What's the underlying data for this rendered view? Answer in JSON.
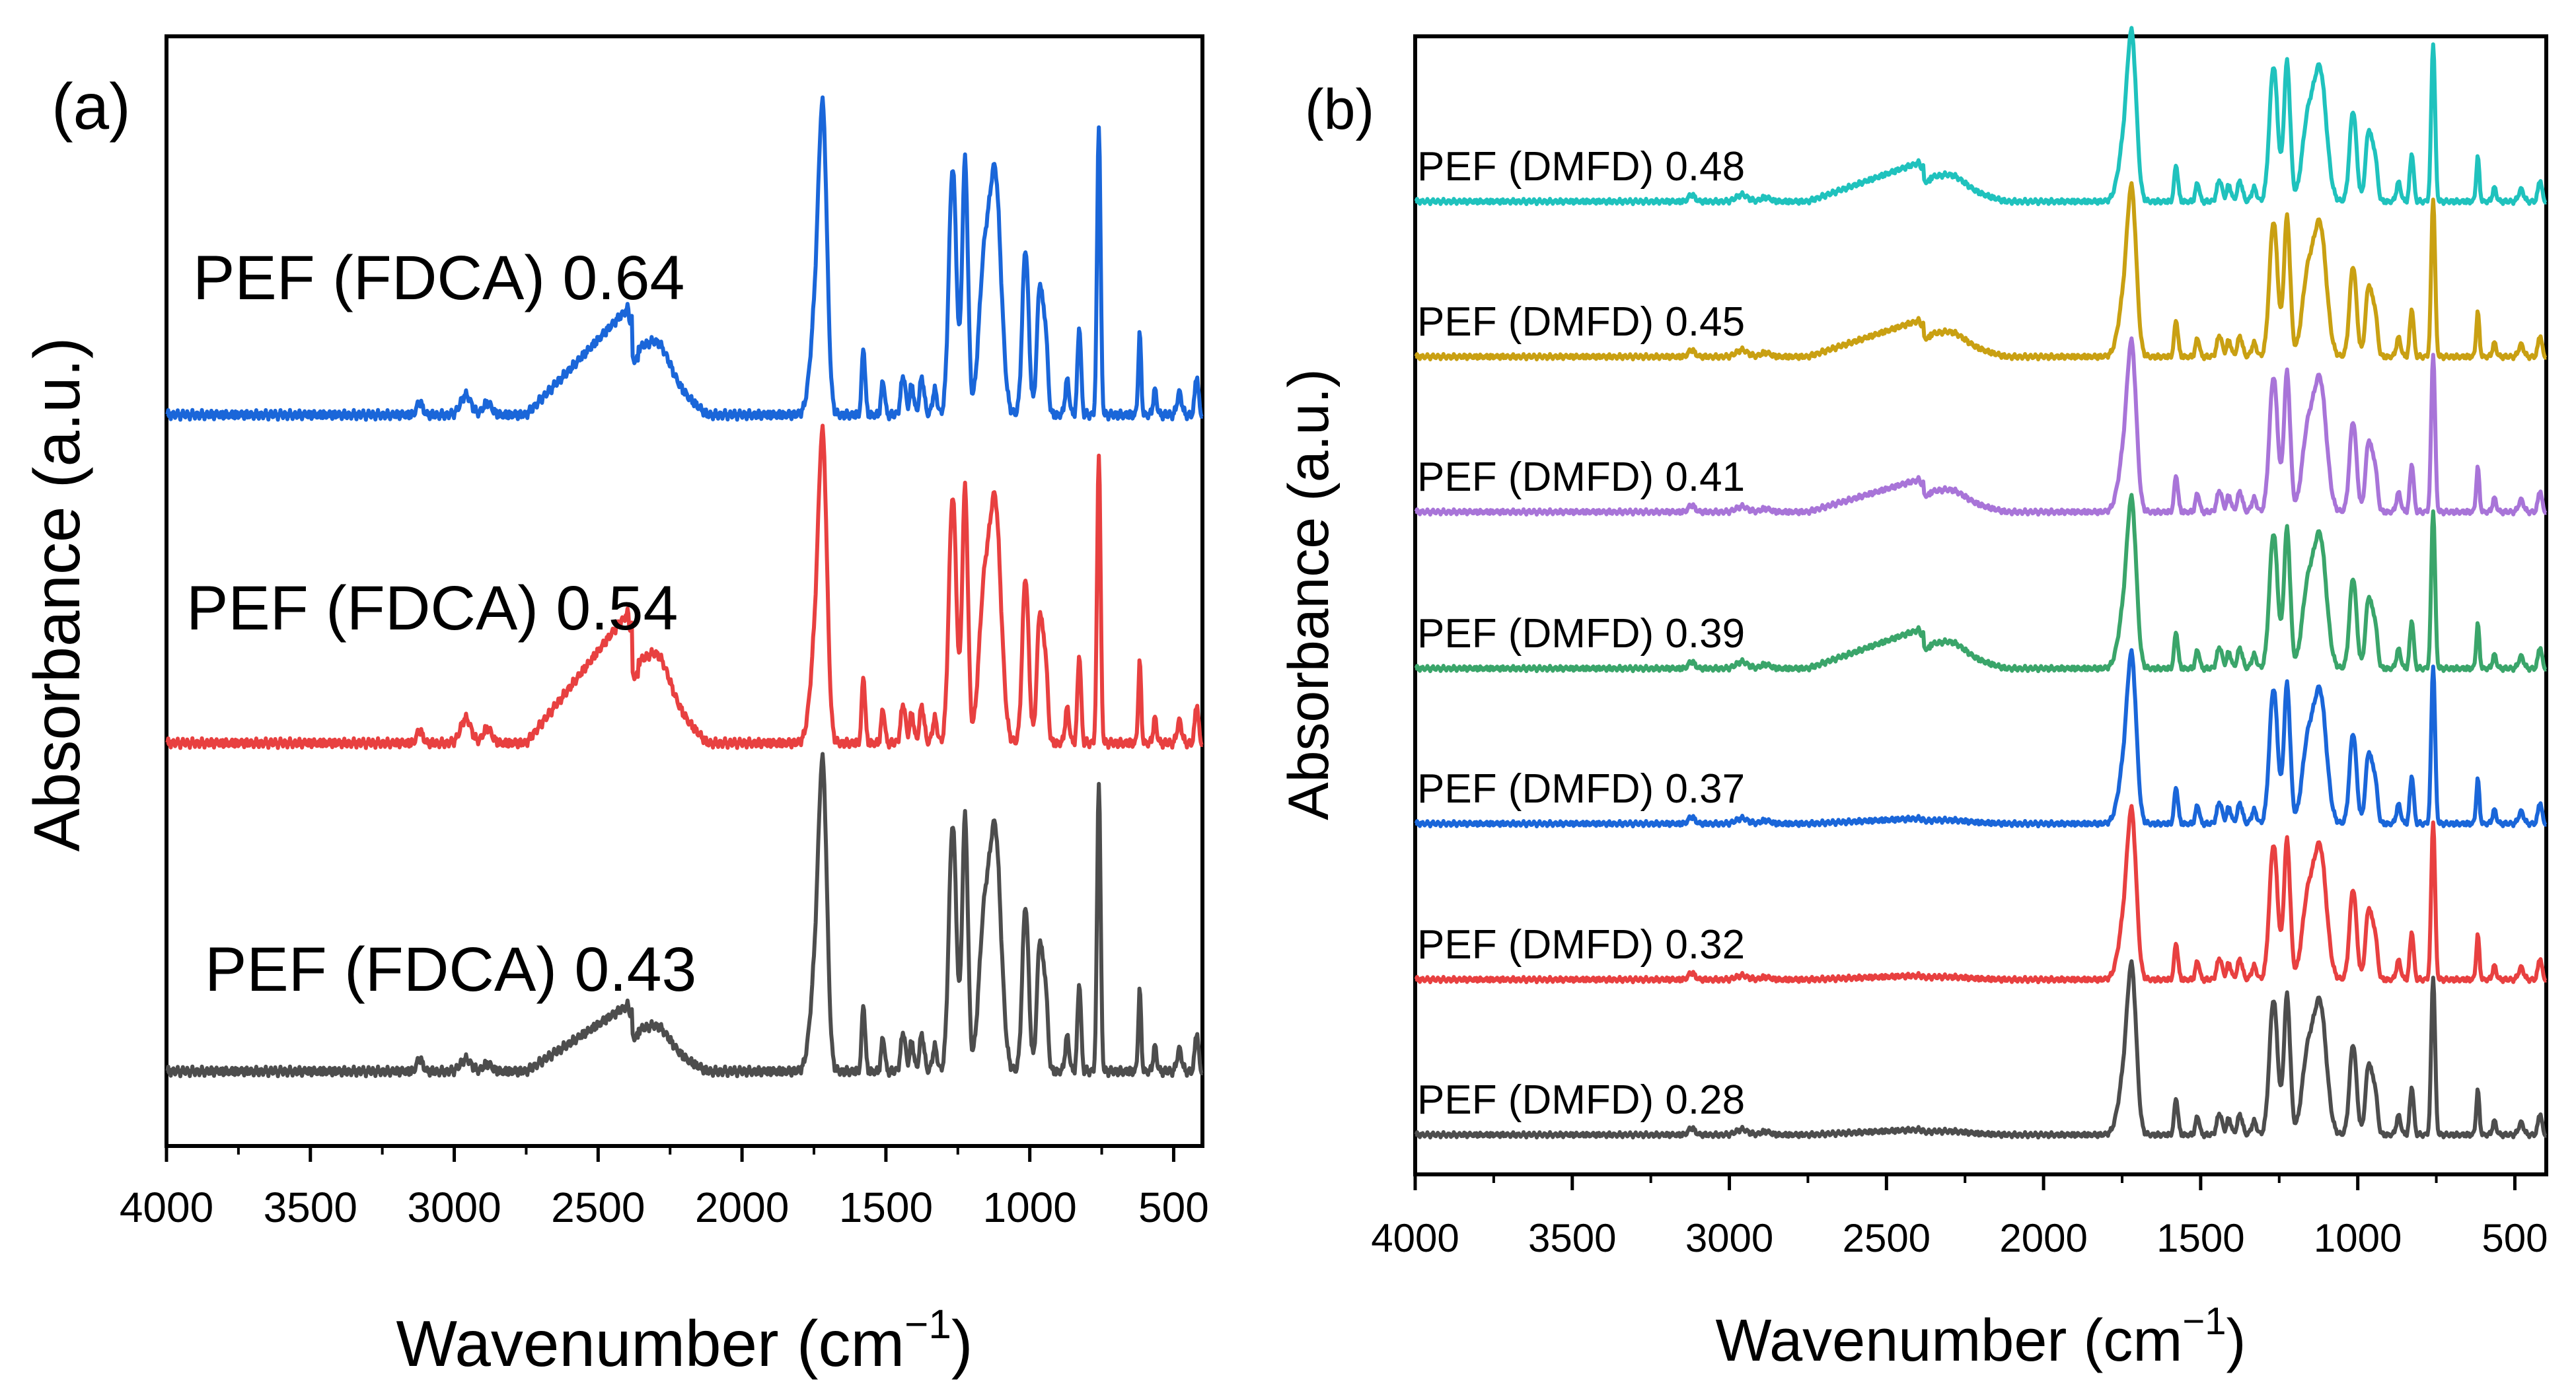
{
  "chart_data": [
    {
      "panel_label": "(a)",
      "type": "line",
      "xlabel": "Wavenumber (cm",
      "xlabel_sup": "−1",
      "xlabel_close": ")",
      "ylabel": "Absorbance (a.u.)",
      "xlim": [
        4000,
        400
      ],
      "x_ticks": [
        4000,
        3500,
        3000,
        2500,
        2000,
        1500,
        1000,
        500
      ],
      "x_tick_labels": [
        "4000",
        "3500",
        "3000",
        "2500",
        "2000",
        "1500",
        "1000",
        "500"
      ],
      "yticks": "none",
      "series": [
        {
          "name": "PEF (FDCA) 0.43",
          "color": "#4d4d4d",
          "offset": 0,
          "label_wavenumber": 3530
        },
        {
          "name": "PEF (FDCA) 0.54",
          "color": "#e84040",
          "offset": 1,
          "label_wavenumber": 3560
        },
        {
          "name": "PEF (FDCA) 0.64",
          "color": "#1a66d9",
          "offset": 2,
          "label_wavenumber": 3540
        }
      ]
    },
    {
      "panel_label": "(b)",
      "type": "line",
      "xlabel": "Wavenumber (cm",
      "xlabel_sup": "−1",
      "xlabel_close": ")",
      "ylabel": "Absorbance (a.u.)",
      "xlim": [
        4000,
        400
      ],
      "x_ticks": [
        4000,
        3500,
        3000,
        2500,
        2000,
        1500,
        1000,
        500
      ],
      "x_tick_labels": [
        "4000",
        "3500",
        "3000",
        "2500",
        "2000",
        "1500",
        "1000",
        "500"
      ],
      "yticks": "none",
      "series": [
        {
          "name": "PEF (DMFD) 0.28",
          "color": "#4d4d4d",
          "offset": 0
        },
        {
          "name": "PEF (DMFD) 0.32",
          "color": "#e84040",
          "offset": 1
        },
        {
          "name": "PEF (DMFD) 0.37",
          "color": "#1a66d9",
          "offset": 2
        },
        {
          "name": "PEF (DMFD) 0.39",
          "color": "#3aa56a",
          "offset": 3
        },
        {
          "name": "PEF (DMFD) 0.41",
          "color": "#a874d8",
          "offset": 4
        },
        {
          "name": "PEF (DMFD) 0.45",
          "color": "#c9a012",
          "offset": 5
        },
        {
          "name": "PEF (DMFD) 0.48",
          "color": "#1fc2bd",
          "offset": 6
        }
      ]
    }
  ]
}
